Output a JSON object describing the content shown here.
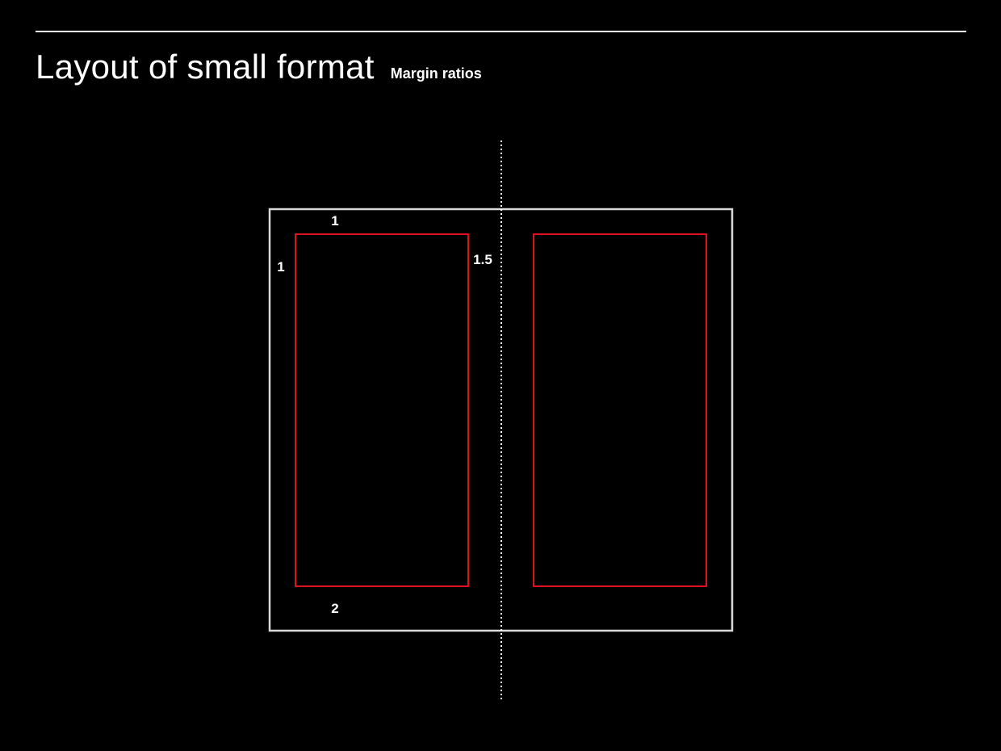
{
  "header": {
    "title": "Layout of small format",
    "subtitle": "Margin ratios"
  },
  "diagram": {
    "margins": {
      "top": "1",
      "outer": "1",
      "inner": "1.5",
      "bottom": "2"
    },
    "colors": {
      "background": "#000000",
      "page_outline": "#d9d9d9",
      "text_block_outline": "#e0101e",
      "spine_line": "#ffffff",
      "text": "#ffffff"
    }
  }
}
